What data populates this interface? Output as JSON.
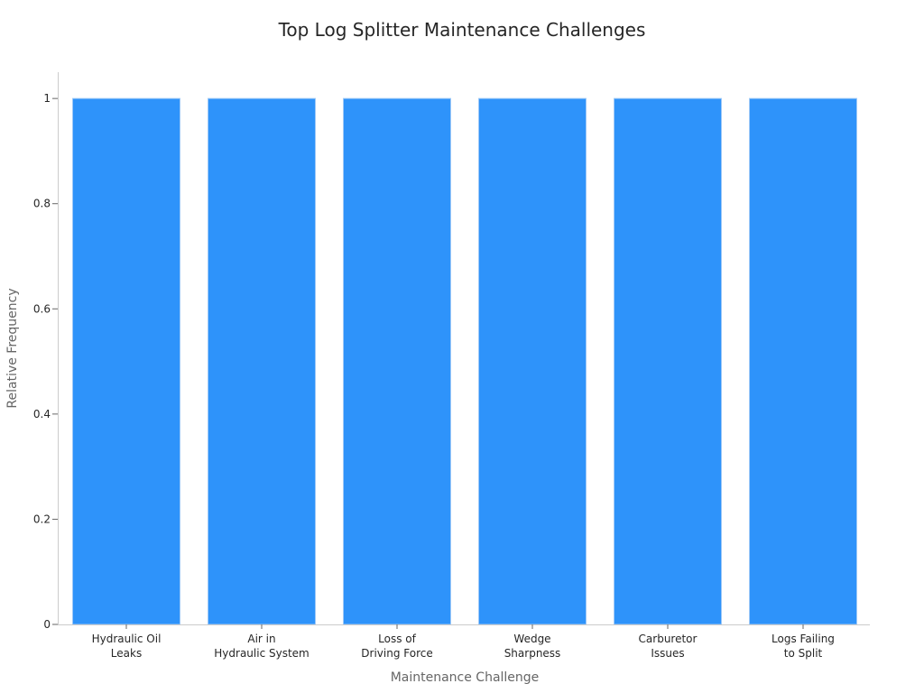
{
  "chart_data": {
    "type": "bar",
    "title": "Top Log Splitter Maintenance Challenges",
    "xlabel": "Maintenance Challenge",
    "ylabel": "Relative Frequency",
    "categories": [
      [
        "Hydraulic Oil",
        "Leaks"
      ],
      [
        "Air in",
        "Hydraulic System"
      ],
      [
        "Loss of",
        "Driving Force"
      ],
      [
        "Wedge",
        "Sharpness"
      ],
      [
        "Carburetor",
        "Issues"
      ],
      [
        "Logs Failing",
        "to Split"
      ]
    ],
    "values": [
      1,
      1,
      1,
      1,
      1,
      1
    ],
    "ylim": [
      0,
      1.05
    ],
    "yticks": [
      0,
      0.2,
      0.4,
      0.6,
      0.8,
      1
    ],
    "ytick_labels": [
      "0",
      "0.2",
      "0.4",
      "0.6",
      "0.8",
      "1"
    ],
    "grid": false,
    "legend": "none",
    "bar_color": "#2e93fa"
  }
}
